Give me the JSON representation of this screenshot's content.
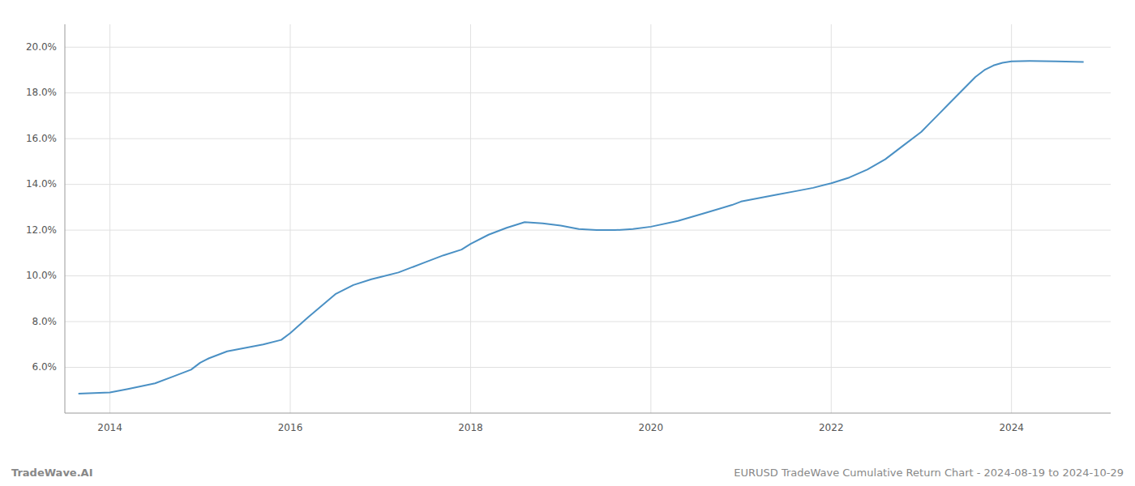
{
  "chart_data": {
    "type": "line",
    "title": "EURUSD TradeWave Cumulative Return Chart - 2024-08-19 to 2024-10-29",
    "annotations": [
      "TradeWave.AI"
    ],
    "color": "#4a90c4",
    "grid": true,
    "x": [
      2013.65,
      2014.0,
      2014.2,
      2014.5,
      2014.7,
      2014.9,
      2015.0,
      2015.1,
      2015.2,
      2015.3,
      2015.5,
      2015.7,
      2015.9,
      2016.0,
      2016.2,
      2016.5,
      2016.7,
      2016.9,
      2017.0,
      2017.2,
      2017.5,
      2017.7,
      2017.9,
      2018.0,
      2018.2,
      2018.4,
      2018.6,
      2018.8,
      2019.0,
      2019.2,
      2019.4,
      2019.6,
      2019.8,
      2020.0,
      2020.3,
      2020.6,
      2020.9,
      2021.0,
      2021.2,
      2021.4,
      2021.6,
      2021.8,
      2022.0,
      2022.2,
      2022.4,
      2022.6,
      2022.8,
      2023.0,
      2023.1,
      2023.2,
      2023.3,
      2023.4,
      2023.5,
      2023.6,
      2023.7,
      2023.8,
      2023.9,
      2024.0,
      2024.2,
      2024.5,
      2024.8
    ],
    "values": [
      4.85,
      4.9,
      5.05,
      5.3,
      5.6,
      5.9,
      6.2,
      6.4,
      6.55,
      6.7,
      6.85,
      7.0,
      7.2,
      7.5,
      8.2,
      9.2,
      9.6,
      9.85,
      9.95,
      10.15,
      10.6,
      10.9,
      11.15,
      11.4,
      11.8,
      12.1,
      12.35,
      12.3,
      12.2,
      12.05,
      12.0,
      12.0,
      12.05,
      12.15,
      12.4,
      12.75,
      13.1,
      13.25,
      13.4,
      13.55,
      13.7,
      13.85,
      14.05,
      14.3,
      14.65,
      15.1,
      15.7,
      16.3,
      16.7,
      17.1,
      17.5,
      17.9,
      18.3,
      18.7,
      19.0,
      19.2,
      19.32,
      19.38,
      19.4,
      19.38,
      19.35
    ],
    "xlim": [
      2013.5,
      2025.1
    ],
    "ylim": [
      4.0,
      21.0
    ],
    "xticks": [
      2014,
      2016,
      2018,
      2020,
      2022,
      2024
    ],
    "yticks": [
      {
        "value": 6.0,
        "label": "6.0%"
      },
      {
        "value": 8.0,
        "label": "8.0%"
      },
      {
        "value": 10.0,
        "label": "10.0%"
      },
      {
        "value": 12.0,
        "label": "12.0%"
      },
      {
        "value": 14.0,
        "label": "14.0%"
      },
      {
        "value": 16.0,
        "label": "16.0%"
      },
      {
        "value": 18.0,
        "label": "18.0%"
      },
      {
        "value": 20.0,
        "label": "20.0%"
      }
    ]
  }
}
